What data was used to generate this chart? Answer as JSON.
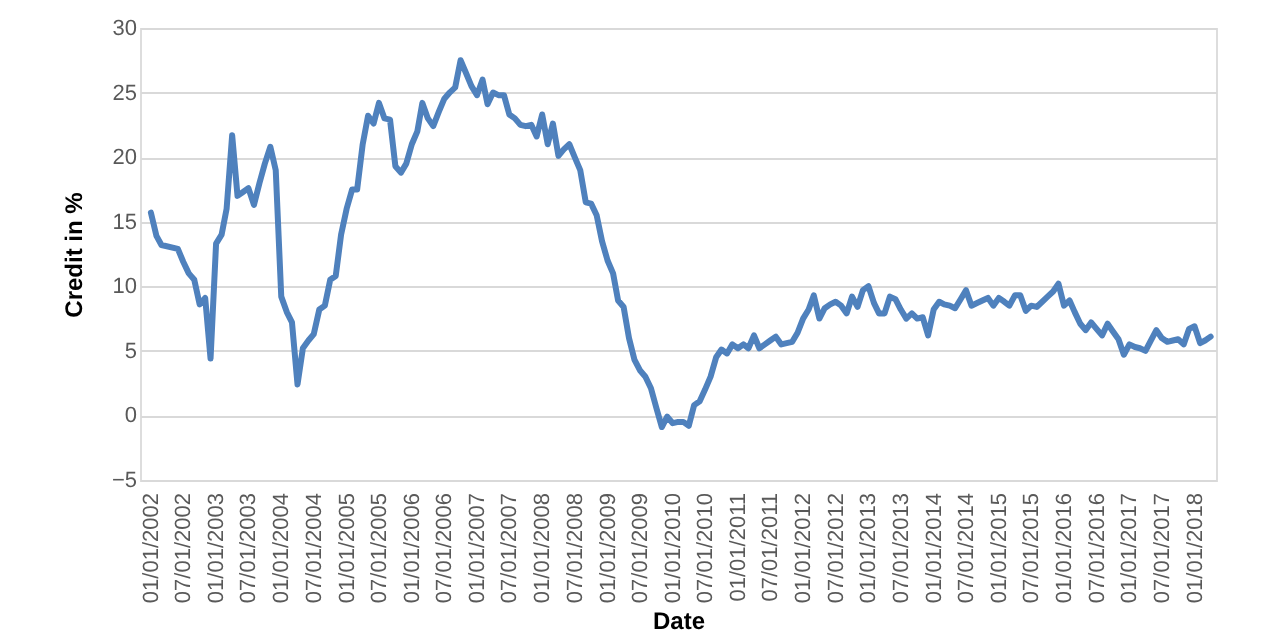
{
  "chart_data": {
    "type": "line",
    "xlabel": "Date",
    "ylabel": "Credit in %",
    "x": [
      "2002-01",
      "2002-02",
      "2002-03",
      "2002-06",
      "2002-07",
      "2002-08",
      "2002-09",
      "2002-10",
      "2002-11",
      "2002-12",
      "2003-01",
      "2003-02",
      "2003-03",
      "2003-04",
      "2003-05",
      "2003-06",
      "2003-07",
      "2003-08",
      "2003-09",
      "2003-10",
      "2003-11",
      "2003-12",
      "2004-01",
      "2004-02",
      "2004-03",
      "2004-04",
      "2004-05",
      "2004-06",
      "2004-07",
      "2004-08",
      "2004-09",
      "2004-10",
      "2004-11",
      "2004-12",
      "2005-01",
      "2005-02",
      "2005-03",
      "2005-04",
      "2005-05",
      "2005-06",
      "2005-07",
      "2005-08",
      "2005-09",
      "2005-10",
      "2005-11",
      "2005-12",
      "2006-01",
      "2006-02",
      "2006-03",
      "2006-04",
      "2006-05",
      "2006-06",
      "2006-07",
      "2006-08",
      "2006-09",
      "2006-10",
      "2006-11",
      "2006-12",
      "2007-01",
      "2007-02",
      "2007-03",
      "2007-04",
      "2007-05",
      "2007-06",
      "2007-07",
      "2007-08",
      "2007-09",
      "2007-10",
      "2007-11",
      "2007-12",
      "2008-01",
      "2008-02",
      "2008-03",
      "2008-04",
      "2008-05",
      "2008-06",
      "2008-07",
      "2008-08",
      "2008-09",
      "2008-10",
      "2008-11",
      "2008-12",
      "2009-01",
      "2009-02",
      "2009-03",
      "2009-04",
      "2009-05",
      "2009-06",
      "2009-07",
      "2009-08",
      "2009-09",
      "2009-10",
      "2009-11",
      "2009-12",
      "2010-01",
      "2010-02",
      "2010-03",
      "2010-04",
      "2010-05",
      "2010-06",
      "2010-07",
      "2010-08",
      "2010-09",
      "2010-10",
      "2010-11",
      "2010-12",
      "2011-01",
      "2011-02",
      "2011-03",
      "2011-04",
      "2011-05",
      "2011-06",
      "2011-07",
      "2011-08",
      "2011-09",
      "2011-10",
      "2011-11",
      "2011-12",
      "2012-01",
      "2012-02",
      "2012-03",
      "2012-04",
      "2012-05",
      "2012-06",
      "2012-07",
      "2012-08",
      "2012-09",
      "2012-10",
      "2012-11",
      "2012-12",
      "2013-01",
      "2013-02",
      "2013-03",
      "2013-04",
      "2013-05",
      "2013-06",
      "2013-07",
      "2013-08",
      "2013-09",
      "2013-10",
      "2013-11",
      "2013-12",
      "2014-01",
      "2014-02",
      "2014-03",
      "2014-04",
      "2014-05",
      "2014-06",
      "2014-07",
      "2014-08",
      "2014-09",
      "2014-10",
      "2014-11",
      "2014-12",
      "2015-01",
      "2015-02",
      "2015-03",
      "2015-04",
      "2015-05",
      "2015-06",
      "2015-07",
      "2015-08",
      "2015-09",
      "2015-10",
      "2015-11",
      "2015-12",
      "2016-01",
      "2016-02",
      "2016-03",
      "2016-04",
      "2016-05",
      "2016-06",
      "2016-07",
      "2016-08",
      "2016-09",
      "2016-10",
      "2016-11",
      "2016-12",
      "2017-01",
      "2017-02",
      "2017-03",
      "2017-04",
      "2017-05",
      "2017-06",
      "2017-07",
      "2017-08",
      "2017-09",
      "2017-10",
      "2017-11",
      "2017-12",
      "2018-01",
      "2018-02",
      "2018-03",
      "2018-04"
    ],
    "series": [
      {
        "color": "#4f81bd",
        "values": [
          15.7,
          13.9,
          13.2,
          12.9,
          11.9,
          11.0,
          10.5,
          8.6,
          9.1,
          4.4,
          13.3,
          14.0,
          16.0,
          21.7,
          17.0,
          17.3,
          17.6,
          16.3,
          18.0,
          19.5,
          20.8,
          19.0,
          9.2,
          8.0,
          7.2,
          2.4,
          5.2,
          5.8,
          6.3,
          8.2,
          8.5,
          10.5,
          10.8,
          14.0,
          16.0,
          17.5,
          17.5,
          21.0,
          23.2,
          22.6,
          24.2,
          23.0,
          22.9,
          19.3,
          18.8,
          19.5,
          21.0,
          22.0,
          24.2,
          23.0,
          22.4,
          23.5,
          24.5,
          25.0,
          25.4,
          27.5,
          26.5,
          25.5,
          24.8,
          26.0,
          24.1,
          25.0,
          24.8,
          24.8,
          23.3,
          23.0,
          22.5,
          22.4,
          22.5,
          21.6,
          23.3,
          21.0,
          22.6,
          20.1,
          20.6,
          21.0,
          20.0,
          19.0,
          16.5,
          16.4,
          15.5,
          13.5,
          12.0,
          11.0,
          8.9,
          8.4,
          6.0,
          4.3,
          3.5,
          3.0,
          2.1,
          0.6,
          -0.9,
          -0.1,
          -0.6,
          -0.5,
          -0.5,
          -0.8,
          0.8,
          1.1,
          2.0,
          3.0,
          4.5,
          5.1,
          4.8,
          5.5,
          5.2,
          5.5,
          5.2,
          6.2,
          5.2,
          5.5,
          5.8,
          6.1,
          5.5,
          5.6,
          5.7,
          6.4,
          7.5,
          8.2,
          9.3,
          7.5,
          8.3,
          8.6,
          8.8,
          8.5,
          7.9,
          9.2,
          8.4,
          9.7,
          10.0,
          8.7,
          7.9,
          7.9,
          9.2,
          9.0,
          8.2,
          7.5,
          7.9,
          7.5,
          7.6,
          6.2,
          8.2,
          8.8,
          8.6,
          8.5,
          8.3,
          9.0,
          9.7,
          8.5,
          8.7,
          8.9,
          9.1,
          8.5,
          9.1,
          8.8,
          8.5,
          9.3,
          9.3,
          8.1,
          8.5,
          8.4,
          8.8,
          9.2,
          9.6,
          10.2,
          8.5,
          8.9,
          8.0,
          7.1,
          6.6,
          7.2,
          6.7,
          6.2,
          7.1,
          6.5,
          5.9,
          4.7,
          5.5,
          5.3,
          5.2,
          5.0,
          5.8,
          6.6,
          6.0,
          5.7,
          5.8,
          5.9,
          5.5,
          6.7,
          6.9,
          5.6,
          5.8,
          6.1
        ]
      }
    ],
    "xlim": [
      "2001-11",
      "2018-05"
    ],
    "xticks": [
      {
        "value": "2002-01",
        "label": "01/01/2002"
      },
      {
        "value": "2002-07",
        "label": "07/01/2002"
      },
      {
        "value": "2003-01",
        "label": "01/01/2003"
      },
      {
        "value": "2003-07",
        "label": "07/01/2003"
      },
      {
        "value": "2004-01",
        "label": "01/01/2004"
      },
      {
        "value": "2004-07",
        "label": "07/01/2004"
      },
      {
        "value": "2005-01",
        "label": "01/01/2005"
      },
      {
        "value": "2005-07",
        "label": "07/01/2005"
      },
      {
        "value": "2006-01",
        "label": "01/01/2006"
      },
      {
        "value": "2006-07",
        "label": "07/01/2006"
      },
      {
        "value": "2007-01",
        "label": "01/01/2007"
      },
      {
        "value": "2007-07",
        "label": "07/01/2007"
      },
      {
        "value": "2008-01",
        "label": "01/01/2008"
      },
      {
        "value": "2008-07",
        "label": "07/01/2008"
      },
      {
        "value": "2009-01",
        "label": "01/01/2009"
      },
      {
        "value": "2009-07",
        "label": "07/01/2009"
      },
      {
        "value": "2010-01",
        "label": "01/01/2010"
      },
      {
        "value": "2010-07",
        "label": "07/01/2010"
      },
      {
        "value": "2011-01",
        "label": "01/01/2011"
      },
      {
        "value": "2011-07",
        "label": "07/01/2011"
      },
      {
        "value": "2012-01",
        "label": "01/01/2012"
      },
      {
        "value": "2012-07",
        "label": "07/01/2012"
      },
      {
        "value": "2013-01",
        "label": "01/01/2013"
      },
      {
        "value": "2013-07",
        "label": "07/01/2013"
      },
      {
        "value": "2014-01",
        "label": "01/01/2014"
      },
      {
        "value": "2014-07",
        "label": "07/01/2014"
      },
      {
        "value": "2015-01",
        "label": "01/01/2015"
      },
      {
        "value": "2015-07",
        "label": "07/01/2015"
      },
      {
        "value": "2016-01",
        "label": "01/01/2016"
      },
      {
        "value": "2016-07",
        "label": "07/01/2016"
      },
      {
        "value": "2017-01",
        "label": "01/01/2017"
      },
      {
        "value": "2017-07",
        "label": "07/01/2017"
      },
      {
        "value": "2018-01",
        "label": "01/01/2018"
      }
    ],
    "ylim": [
      -5,
      30
    ],
    "yticks": [
      -5,
      0,
      5,
      10,
      15,
      20,
      25,
      30
    ],
    "grid": "y",
    "marker": "none",
    "line_style": "solid"
  }
}
